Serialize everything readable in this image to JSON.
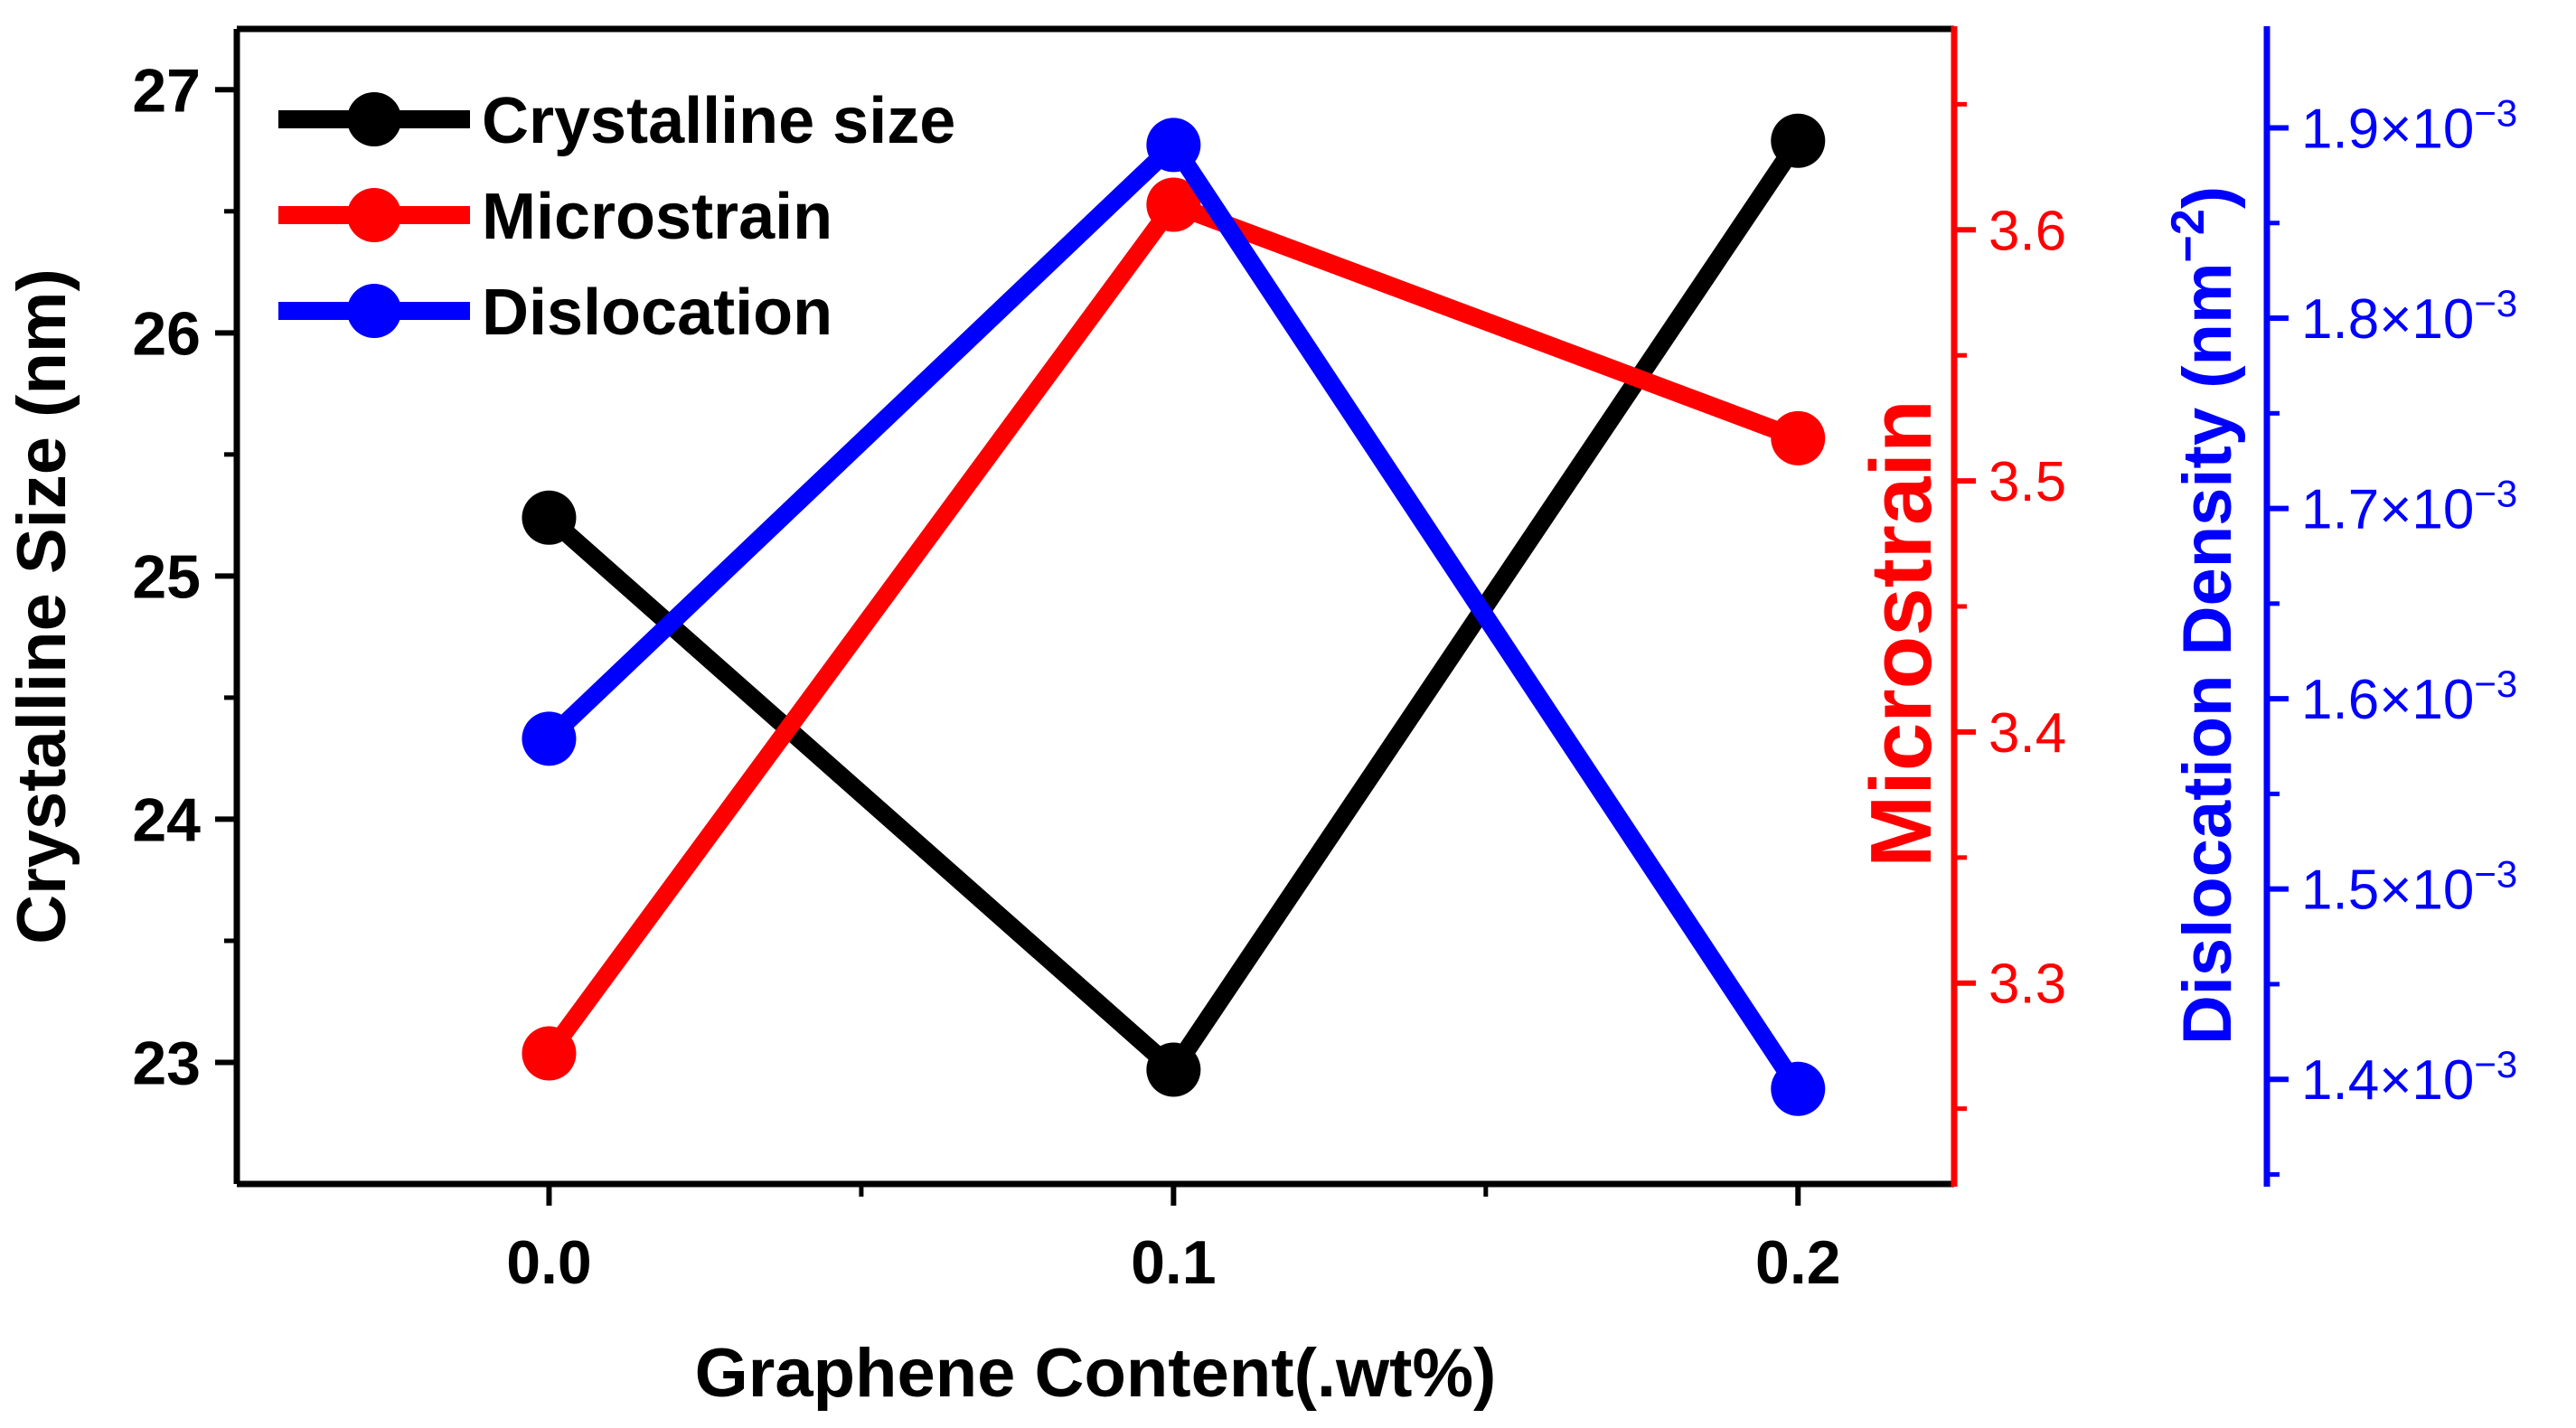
{
  "chart_data": {
    "type": "line",
    "title": "",
    "x": [
      0.0,
      0.1,
      0.2
    ],
    "x_tick_labels": [
      "0.0",
      "0.1",
      "0.2"
    ],
    "xlabel": "Graphene Content(.wt%)",
    "xlim": [
      -0.05,
      0.225
    ],
    "series": [
      {
        "name": "Crystalline size",
        "axis": "left",
        "color": "#000000",
        "values": [
          25.24,
          22.97,
          26.79
        ]
      },
      {
        "name": "Microstrain",
        "axis": "right1",
        "color": "#ff0000",
        "values": [
          3.272,
          3.61,
          3.517
        ]
      },
      {
        "name": "Dislocation",
        "axis": "right2",
        "color": "#0000ff",
        "values": [
          0.001579,
          0.001891,
          0.001395
        ]
      }
    ],
    "axes": {
      "left": {
        "label": "Crystalline Size (nm)",
        "color": "#000000",
        "ylim": [
          22.5,
          27.25
        ],
        "ticks": [
          23,
          24,
          25,
          26,
          27
        ],
        "tick_labels": [
          "23",
          "24",
          "25",
          "26",
          "27"
        ]
      },
      "right1": {
        "label": "Microstrain",
        "color": "#ff0000",
        "ylim": [
          3.22,
          3.68
        ],
        "ticks": [
          3.3,
          3.4,
          3.5,
          3.6
        ],
        "tick_labels": [
          "3.3",
          "3.4",
          "3.5",
          "3.6"
        ]
      },
      "right2": {
        "label_main": "Dislocation Density (nm",
        "label_sup": "−2",
        "label_end": ")",
        "color": "#0000ff",
        "ylim": [
          0.001345,
          0.001952
        ],
        "ticks": [
          0.0014,
          0.0015,
          0.0016,
          0.0017,
          0.0018,
          0.0019
        ],
        "tick_labels": [
          {
            "base": "1.4×10",
            "exp": "−3"
          },
          {
            "base": "1.5×10",
            "exp": "−3"
          },
          {
            "base": "1.6×10",
            "exp": "−3"
          },
          {
            "base": "1.7×10",
            "exp": "−3"
          },
          {
            "base": "1.8×10",
            "exp": "−3"
          },
          {
            "base": "1.9×10",
            "exp": "−3"
          }
        ]
      }
    },
    "legend": {
      "position": "top-left",
      "entries": [
        "Crystalline size",
        "Microstrain",
        "Dislocation"
      ]
    }
  }
}
